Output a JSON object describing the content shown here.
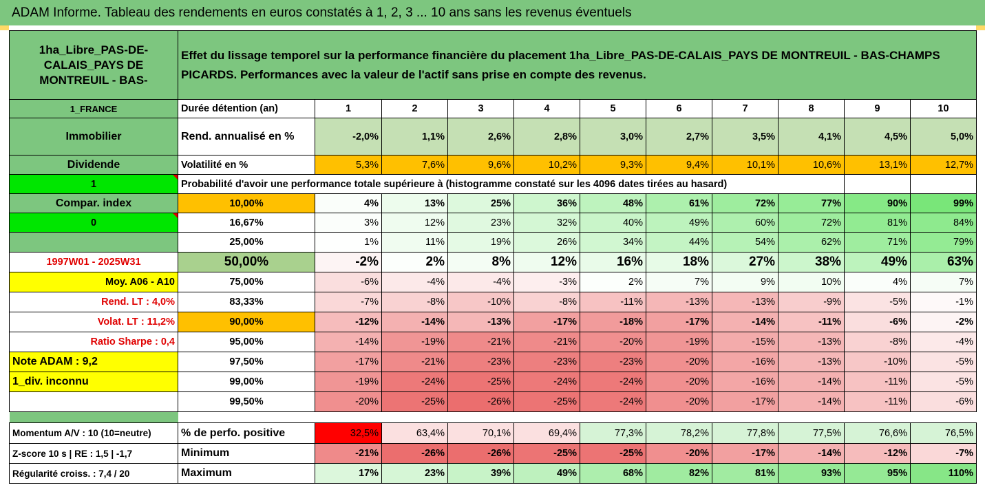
{
  "title": "ADAM Informe. Tableau des rendements en euros constatés à 1, 2, 3 ... 10 ans sans les revenus éventuels",
  "asset_name": "1ha_Libre_PAS-DE-CALAIS_PAYS DE MONTREUIL - BAS-",
  "description": "Effet du lissage temporel sur la performance financière du placement 1ha_Libre_PAS-DE-CALAIS_PAYS DE MONTREUIL - BAS-CHAMPS PICARDS. Performances avec la valeur de l'actif sans prise en compte des revenus.",
  "left": {
    "country": "1_FRANCE",
    "category": "Immobilier",
    "dividende_label": "Dividende",
    "dividende_value": "1",
    "compar_label": "Compar. index",
    "compar_value": "0",
    "period": "1997W01 - 2025W31",
    "moy": "Moy. A06 - A10",
    "rend_lt": "Rend. LT :   4,0%",
    "volat_lt": "Volat. LT :   11,2%",
    "sharpe": "Ratio Sharpe :   0,4",
    "note": "Note ADAM : 9,2",
    "div": "1_div. inconnu",
    "momentum": "Momentum A/V : 10 (10=neutre)",
    "zscore": "Z-score 10 s  | RE : 1,5 | -1,7",
    "regularite": "Régularité croiss. : 7,4 / 20"
  },
  "header": {
    "label": "Durée détention (an)",
    "years": [
      "1",
      "2",
      "3",
      "4",
      "5",
      "6",
      "7",
      "8",
      "9",
      "10"
    ]
  },
  "rend": {
    "label": "Rend. annualisé en %",
    "values": [
      "-2,0%",
      "1,1%",
      "2,6%",
      "2,8%",
      "3,0%",
      "2,7%",
      "3,5%",
      "4,1%",
      "4,5%",
      "5,0%"
    ]
  },
  "volat": {
    "label": "Volatilité en %",
    "values": [
      "5,3%",
      "7,6%",
      "9,6%",
      "10,2%",
      "9,3%",
      "9,4%",
      "10,1%",
      "10,6%",
      "13,1%",
      "12,7%"
    ]
  },
  "prob_label": "Probabilité d'avoir une performance totale supérieure à (histogramme constaté sur les 4096 dates tirées au hasard)",
  "quantiles": [
    {
      "label": "10,00%",
      "values": [
        "4%",
        "13%",
        "25%",
        "36%",
        "48%",
        "61%",
        "72%",
        "77%",
        "90%",
        "99%"
      ]
    },
    {
      "label": "16,67%",
      "values": [
        "3%",
        "12%",
        "23%",
        "32%",
        "40%",
        "49%",
        "60%",
        "72%",
        "81%",
        "84%"
      ]
    },
    {
      "label": "25,00%",
      "values": [
        "1%",
        "11%",
        "19%",
        "26%",
        "34%",
        "44%",
        "54%",
        "62%",
        "71%",
        "79%"
      ]
    },
    {
      "label": "50,00%",
      "values": [
        "-2%",
        "2%",
        "8%",
        "12%",
        "16%",
        "18%",
        "27%",
        "38%",
        "49%",
        "63%"
      ]
    },
    {
      "label": "75,00%",
      "values": [
        "-6%",
        "-4%",
        "-4%",
        "-3%",
        "2%",
        "7%",
        "9%",
        "10%",
        "4%",
        "7%"
      ]
    },
    {
      "label": "83,33%",
      "values": [
        "-7%",
        "-8%",
        "-10%",
        "-8%",
        "-11%",
        "-13%",
        "-13%",
        "-9%",
        "-5%",
        "-1%"
      ]
    },
    {
      "label": "90,00%",
      "values": [
        "-12%",
        "-14%",
        "-13%",
        "-17%",
        "-18%",
        "-17%",
        "-14%",
        "-11%",
        "-6%",
        "-2%"
      ]
    },
    {
      "label": "95,00%",
      "values": [
        "-14%",
        "-19%",
        "-21%",
        "-21%",
        "-20%",
        "-19%",
        "-15%",
        "-13%",
        "-8%",
        "-4%"
      ]
    },
    {
      "label": "97,50%",
      "values": [
        "-17%",
        "-21%",
        "-23%",
        "-23%",
        "-23%",
        "-20%",
        "-16%",
        "-13%",
        "-10%",
        "-5%"
      ]
    },
    {
      "label": "99,00%",
      "values": [
        "-19%",
        "-24%",
        "-25%",
        "-24%",
        "-24%",
        "-20%",
        "-16%",
        "-14%",
        "-11%",
        "-5%"
      ]
    },
    {
      "label": "99,50%",
      "values": [
        "-20%",
        "-25%",
        "-26%",
        "-25%",
        "-24%",
        "-20%",
        "-17%",
        "-14%",
        "-11%",
        "-6%"
      ]
    }
  ],
  "pos": {
    "label": "% de perfo. positive",
    "values": [
      "32,5%",
      "63,4%",
      "70,1%",
      "69,4%",
      "77,3%",
      "78,2%",
      "77,8%",
      "77,5%",
      "76,6%",
      "76,5%"
    ]
  },
  "min": {
    "label": "Minimum",
    "values": [
      "-21%",
      "-26%",
      "-26%",
      "-25%",
      "-25%",
      "-20%",
      "-17%",
      "-14%",
      "-12%",
      "-7%"
    ]
  },
  "max": {
    "label": "Maximum",
    "values": [
      "17%",
      "23%",
      "39%",
      "49%",
      "68%",
      "82%",
      "81%",
      "93%",
      "95%",
      "110%"
    ]
  }
}
